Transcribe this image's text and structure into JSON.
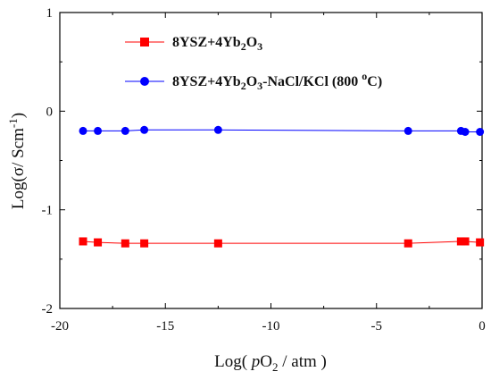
{
  "chart_data": {
    "type": "line",
    "xlabel": "Log(pO2 / atm)",
    "ylabel": "Log(σ/ Scm-1)",
    "xlim": [
      -20,
      0
    ],
    "ylim": [
      -2,
      1
    ],
    "x_ticks": [
      -20,
      -15,
      -10,
      -5,
      0
    ],
    "y_ticks": [
      -2,
      -1,
      0,
      1
    ],
    "legend_placement": "top-right",
    "series": [
      {
        "name": "8YSZ+4Yb2O3",
        "color": "#ff0000",
        "marker": "square",
        "x": [
          -18.9,
          -18.2,
          -16.9,
          -16.0,
          -12.5,
          -3.5,
          -1.0,
          -0.8,
          -0.1
        ],
        "y": [
          -1.32,
          -1.33,
          -1.34,
          -1.34,
          -1.34,
          -1.34,
          -1.32,
          -1.32,
          -1.33
        ]
      },
      {
        "name": "8YSZ+4Yb2O3-NaCl/KCl (800 oC)",
        "color": "#0000ff",
        "marker": "circle",
        "x": [
          -18.9,
          -18.2,
          -16.9,
          -16.0,
          -12.5,
          -3.5,
          -1.0,
          -0.8,
          -0.1
        ],
        "y": [
          -0.2,
          -0.2,
          -0.2,
          -0.19,
          -0.19,
          -0.2,
          -0.2,
          -0.21,
          -0.21
        ]
      }
    ]
  }
}
